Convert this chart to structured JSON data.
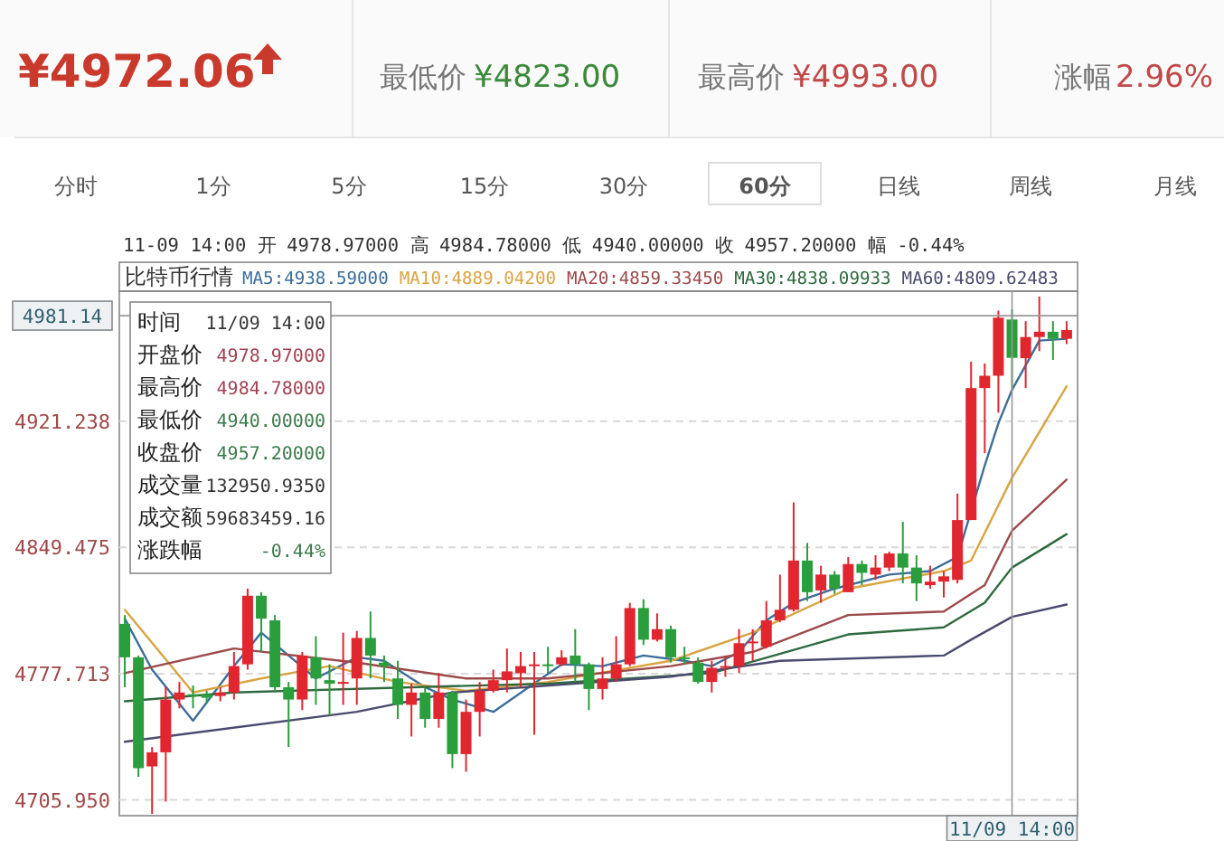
{
  "chart_data": {
    "type": "candlestick",
    "title": "比特币行情",
    "categories": [
      null,
      null,
      null,
      null,
      null,
      null,
      null,
      null,
      null,
      null,
      null,
      null,
      null,
      null,
      null,
      null,
      null,
      null,
      null,
      null,
      null,
      null,
      null,
      null,
      null,
      null,
      null,
      null,
      null,
      null,
      null,
      null,
      null,
      null,
      null,
      null,
      null,
      null,
      null,
      null,
      null,
      null,
      null,
      null,
      null,
      null,
      null,
      null,
      null,
      null,
      null,
      null,
      null,
      null,
      null,
      null,
      null,
      null,
      null,
      null,
      null,
      null,
      null,
      null,
      null,
      "11/09 14:00",
      null,
      null,
      null,
      null
    ],
    "ohlc": [
      [
        4806,
        4811,
        4770,
        4787
      ],
      [
        4787,
        4788,
        4719,
        4724
      ],
      [
        4725,
        4736,
        4698,
        4733
      ],
      [
        4733,
        4770,
        4705,
        4763
      ],
      [
        4763,
        4773,
        4758,
        4767
      ],
      [
        4766,
        4771,
        4758,
        4765
      ],
      [
        4766,
        4768,
        4761,
        4764
      ],
      [
        4765,
        4770,
        4762,
        4767
      ],
      [
        4767,
        4790,
        4763,
        4782
      ],
      [
        4783,
        4826,
        4780,
        4822
      ],
      [
        4822,
        4824,
        4790,
        4809
      ],
      [
        4808,
        4811,
        4768,
        4770
      ],
      [
        4770,
        4773,
        4736,
        4763
      ],
      [
        4763,
        4790,
        4757,
        4788
      ],
      [
        4787,
        4799,
        4760,
        4775
      ],
      [
        4774,
        4783,
        4754,
        4772
      ],
      [
        4772,
        4801,
        4760,
        4773
      ],
      [
        4775,
        4802,
        4760,
        4798
      ],
      [
        4798,
        4813,
        4775,
        4788
      ],
      [
        4784,
        4788,
        4773,
        4782
      ],
      [
        4775,
        4785,
        4752,
        4760
      ],
      [
        4760,
        4772,
        4742,
        4767
      ],
      [
        4767,
        4770,
        4747,
        4752
      ],
      [
        4752,
        4778,
        4747,
        4767
      ],
      [
        4767,
        4768,
        4724,
        4732
      ],
      [
        4732,
        4763,
        4722,
        4756
      ],
      [
        4756,
        4773,
        4742,
        4768
      ],
      [
        4768,
        4780,
        4767,
        4774
      ],
      [
        4774,
        4792,
        4767,
        4779
      ],
      [
        4778,
        4790,
        4770,
        4782
      ],
      [
        4782,
        4790,
        4743,
        4783
      ],
      [
        4783,
        4793,
        4778,
        4782
      ],
      [
        4783,
        4791,
        4782,
        4787
      ],
      [
        4788,
        4803,
        4773,
        4783
      ],
      [
        4783,
        4784,
        4757,
        4769
      ],
      [
        4769,
        4787,
        4763,
        4775
      ],
      [
        4775,
        4799,
        4773,
        4783
      ],
      [
        4783,
        4818,
        4782,
        4815
      ],
      [
        4815,
        4820,
        4794,
        4797
      ],
      [
        4797,
        4812,
        4796,
        4803
      ],
      [
        4803,
        4805,
        4784,
        4787
      ],
      [
        4787,
        4793,
        4783,
        4786
      ],
      [
        4784,
        4787,
        4772,
        4773
      ],
      [
        4773,
        4785,
        4767,
        4781
      ],
      [
        4781,
        4788,
        4776,
        4782
      ],
      [
        4782,
        4803,
        4778,
        4795
      ],
      [
        4795,
        4803,
        4785,
        4796
      ],
      [
        4793,
        4819,
        4792,
        4808
      ],
      [
        4808,
        4834,
        4807,
        4814
      ],
      [
        4814,
        4875,
        4813,
        4842
      ],
      [
        4842,
        4852,
        4819,
        4824
      ],
      [
        4825,
        4839,
        4818,
        4834
      ],
      [
        4834,
        4836,
        4823,
        4826
      ],
      [
        4824,
        4844,
        4824,
        4840
      ],
      [
        4840,
        4842,
        4828,
        4835
      ],
      [
        4834,
        4845,
        4831,
        4838
      ],
      [
        4838,
        4847,
        4836,
        4846
      ],
      [
        4846,
        4864,
        4829,
        4838
      ],
      [
        4838,
        4845,
        4819,
        4829
      ],
      [
        4828,
        4839,
        4826,
        4830
      ],
      [
        4830,
        4836,
        4821,
        4833
      ],
      [
        4831,
        4880,
        4829,
        4865
      ],
      [
        4865,
        4955,
        4865,
        4940
      ],
      [
        4940,
        4954,
        4903,
        4947
      ],
      [
        4947,
        4984,
        4926,
        4980
      ],
      [
        4978.97,
        4984.78,
        4940.0,
        4957.2
      ],
      [
        4957,
        4978,
        4940,
        4969
      ],
      [
        4969,
        4992,
        4961,
        4972
      ],
      [
        4972,
        4978,
        4956,
        4968
      ],
      [
        4968,
        4978,
        4965,
        4973
      ]
    ],
    "colors": [
      "#2a9d3c",
      "#2a9d3c",
      "#e0262f",
      "#e0262f",
      "#e0262f",
      "#2a9d3c",
      "#2a9d3c",
      "#e0262f",
      "#e0262f",
      "#e0262f",
      "#2a9d3c",
      "#2a9d3c",
      "#2a9d3c",
      "#e0262f",
      "#2a9d3c",
      "#2a9d3c",
      "#e0262f",
      "#e0262f",
      "#2a9d3c",
      "#2a9d3c",
      "#2a9d3c",
      "#e0262f",
      "#2a9d3c",
      "#e0262f",
      "#2a9d3c",
      "#e0262f",
      "#e0262f",
      "#e0262f",
      "#e0262f",
      "#e0262f",
      "#e0262f",
      "#2a9d3c",
      "#e0262f",
      "#2a9d3c",
      "#2a9d3c",
      "#e0262f",
      "#e0262f",
      "#e0262f",
      "#2a9d3c",
      "#e0262f",
      "#2a9d3c",
      "#2a9d3c",
      "#2a9d3c",
      "#e0262f",
      "#e0262f",
      "#e0262f",
      "#e0262f",
      "#e0262f",
      "#e0262f",
      "#e0262f",
      "#2a9d3c",
      "#e0262f",
      "#2a9d3c",
      "#e0262f",
      "#2a9d3c",
      "#e0262f",
      "#e0262f",
      "#2a9d3c",
      "#2a9d3c",
      "#e0262f",
      "#e0262f",
      "#e0262f",
      "#e0262f",
      "#e0262f",
      "#e0262f",
      "#2a9d3c",
      "#e0262f",
      "#e0262f",
      "#2a9d3c",
      "#e0262f"
    ],
    "series": [
      {
        "name": "MA5:4938.59000",
        "type": "line",
        "color": "#3c6e99",
        "values": [
          4809,
          null,
          4780,
          null,
          null,
          4751,
          null,
          null,
          4782,
          null,
          4801,
          null,
          4788,
          null,
          4775,
          null,
          null,
          4787,
          null,
          4785,
          null,
          null,
          4770,
          null,
          4763,
          null,
          null,
          4756,
          null,
          null,
          null,
          null,
          4783,
          null,
          null,
          4782,
          null,
          null,
          4788,
          null,
          null,
          4785,
          null,
          4782,
          null,
          4790,
          null,
          4808,
          null,
          4818,
          null,
          null,
          4826,
          null,
          null,
          null,
          4834,
          null,
          null,
          4836,
          null,
          4844,
          null,
          4896,
          4920,
          4939,
          null,
          4967,
          null,
          4968
        ]
      },
      {
        "name": "MA10:4889.04200",
        "type": "line",
        "color": "#d9a441",
        "values": [
          4814,
          null,
          null,
          null,
          null,
          4767,
          null,
          null,
          null,
          null,
          4775,
          null,
          null,
          null,
          null,
          4782,
          null,
          null,
          null,
          null,
          4773,
          null,
          null,
          null,
          null,
          4768,
          null,
          null,
          null,
          null,
          null,
          4773,
          null,
          null,
          null,
          null,
          null,
          null,
          null,
          null,
          4785,
          null,
          null,
          null,
          null,
          null,
          4801,
          null,
          null,
          null,
          null,
          null,
          null,
          4826,
          null,
          null,
          null,
          null,
          null,
          null,
          4836,
          null,
          4842,
          null,
          null,
          4889,
          null,
          null,
          null,
          4941
        ]
      },
      {
        "name": "MA20:4859.33450",
        "type": "line",
        "color": "#9c4a4a",
        "values": [
          4778,
          null,
          null,
          null,
          null,
          null,
          null,
          null,
          4792,
          null,
          null,
          null,
          null,
          null,
          null,
          null,
          null,
          4784,
          null,
          null,
          null,
          null,
          null,
          null,
          null,
          4775,
          null,
          null,
          null,
          null,
          null,
          4775,
          null,
          null,
          null,
          null,
          null,
          null,
          null,
          null,
          4782,
          null,
          null,
          null,
          null,
          null,
          4790,
          null,
          null,
          null,
          null,
          null,
          null,
          4811,
          null,
          null,
          null,
          null,
          null,
          null,
          4813,
          null,
          null,
          4828,
          null,
          4859,
          null,
          null,
          null,
          4888
        ]
      },
      {
        "name": "MA30:4838.09933",
        "type": "line",
        "color": "#2f6a3e",
        "values": [
          4762,
          null,
          null,
          null,
          null,
          null,
          null,
          null,
          4767,
          null,
          null,
          null,
          null,
          null,
          null,
          null,
          null,
          null,
          null,
          null,
          null,
          4770,
          null,
          null,
          null,
          null,
          null,
          null,
          null,
          null,
          null,
          4772,
          null,
          null,
          null,
          null,
          null,
          null,
          null,
          null,
          null,
          null,
          null,
          4778,
          null,
          null,
          null,
          null,
          null,
          null,
          null,
          null,
          null,
          4800,
          null,
          null,
          null,
          null,
          null,
          null,
          4804,
          null,
          null,
          4818,
          null,
          4838,
          null,
          null,
          null,
          4857
        ]
      },
      {
        "name": "MA60:4809.62483",
        "type": "line",
        "color": "#4b4b70",
        "values": [
          4739,
          null,
          null,
          null,
          null,
          null,
          null,
          null,
          null,
          null,
          null,
          null,
          null,
          null,
          null,
          null,
          null,
          4756,
          null,
          null,
          null,
          null,
          null,
          null,
          4767,
          null,
          null,
          null,
          null,
          null,
          null,
          null,
          null,
          null,
          null,
          null,
          null,
          null,
          null,
          null,
          4776,
          null,
          null,
          null,
          null,
          null,
          null,
          null,
          4785,
          null,
          null,
          null,
          null,
          null,
          null,
          null,
          null,
          null,
          null,
          null,
          4788,
          null,
          4797,
          null,
          null,
          4810,
          null,
          null,
          null,
          4817
        ]
      }
    ],
    "ylim": [
      4697,
      4993
    ],
    "yticks": [
      {
        "value": 4705.95,
        "label": "4705.950"
      },
      4777.713,
      4849.475,
      4921.238
    ],
    "grid": "y",
    "ref_lines": [
      {
        "axis": "y",
        "value": 4981.14,
        "label": "4981.14",
        "color": "#999999"
      },
      {
        "axis": "x",
        "value": "11/09 14:00",
        "color": "#999999"
      }
    ],
    "annotations": [
      "¥4972.06",
      "最低价",
      "¥4823.00",
      "最高价",
      "¥4993.00",
      "涨幅",
      "2.96%",
      "分时",
      "1分",
      "5分",
      "15分",
      "30分",
      "60分",
      "日线",
      "周线",
      "月线",
      "11-09 14:00 开 4978.97000 高 4984.78000 低 4940.00000 收 4957.20000 幅 -0.44%",
      "时间",
      "11/09 14:00",
      "开盘价",
      "4978.97000",
      "最高价",
      "4984.78000",
      "最低价",
      "4940.00000",
      "收盘价",
      "4957.20000",
      "成交量",
      "132950.9350",
      "成交额",
      "59683459.16",
      "涨跌幅",
      "-0.44%"
    ]
  }
}
